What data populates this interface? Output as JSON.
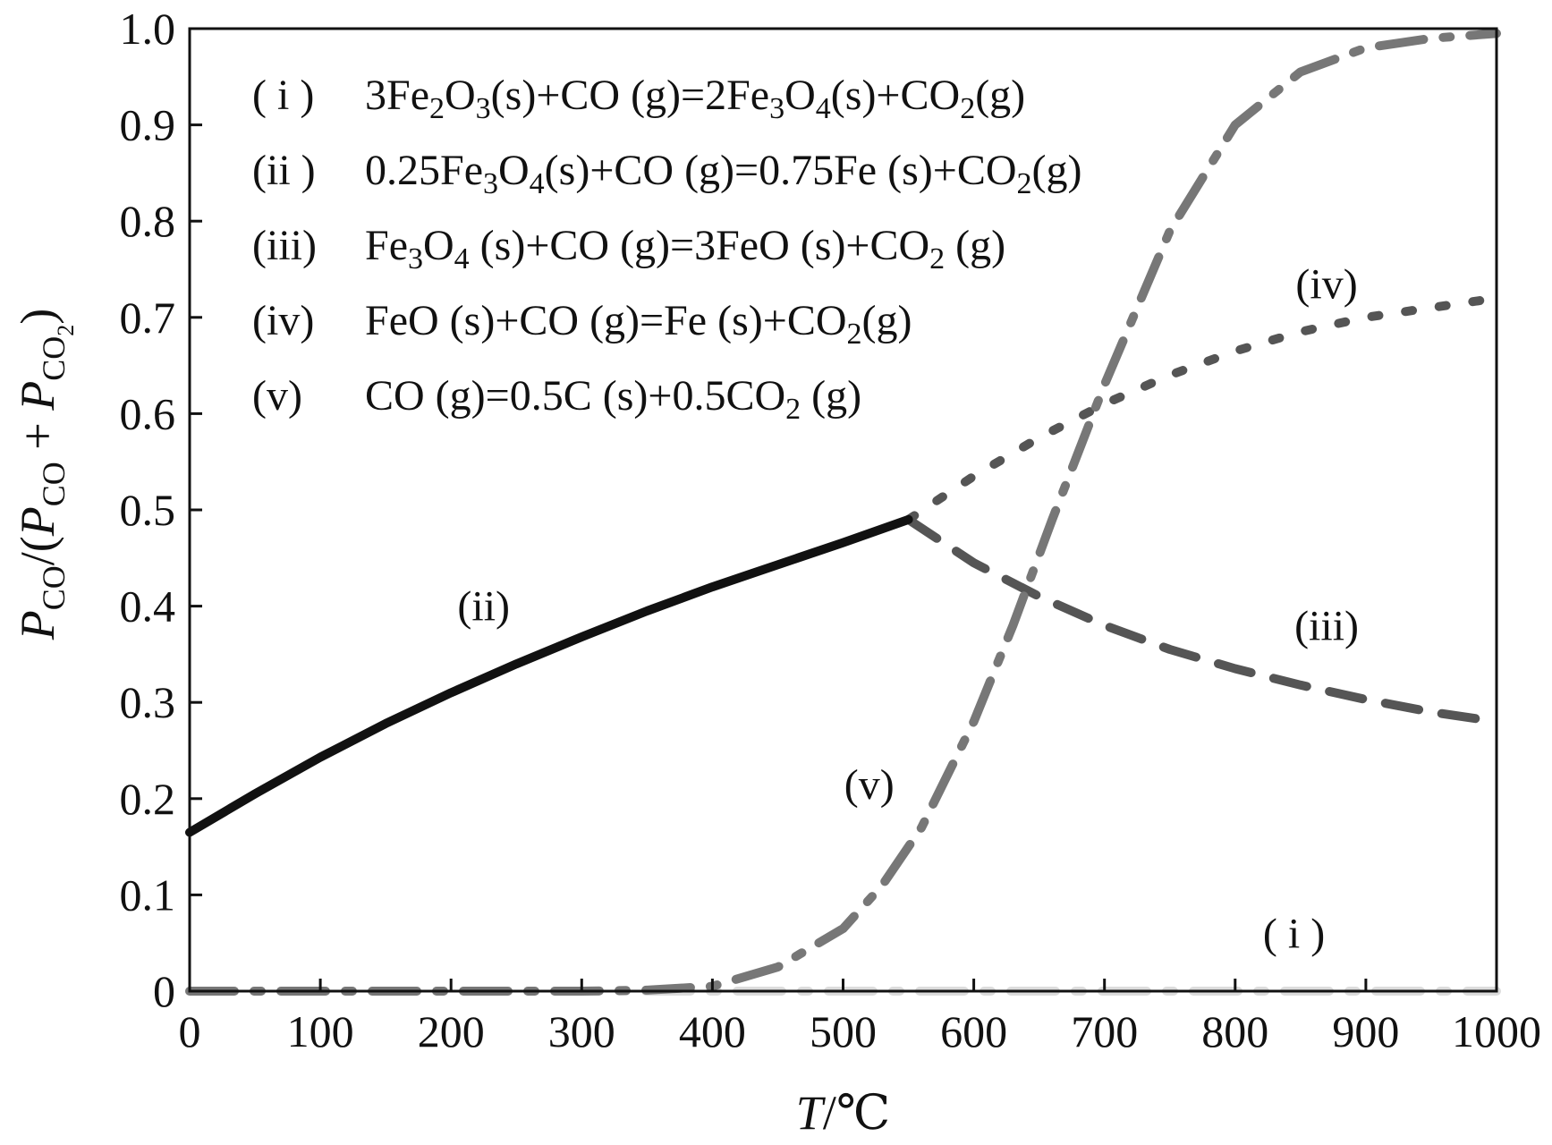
{
  "chart_data": {
    "type": "line",
    "xlabel": {
      "var": "T",
      "unit": "/℃"
    },
    "ylabel": {
      "num": "P",
      "num_sub": "CO",
      "mid": "/(",
      "p1": "P",
      "p1_sub": "CO",
      "plus": " + ",
      "p2": "P",
      "p2_sub": "CO",
      "p2_subsub": "2",
      "close": ")"
    },
    "xlim": [
      0,
      1000
    ],
    "ylim": [
      0,
      1.0
    ],
    "x_ticks": [
      "0",
      "100",
      "200",
      "300",
      "400",
      "500",
      "600",
      "700",
      "800",
      "900",
      "1000"
    ],
    "x_tick_values": [
      0,
      100,
      200,
      300,
      400,
      500,
      600,
      700,
      800,
      900,
      1000
    ],
    "y_ticks": [
      "0",
      "0.1",
      "0.2",
      "0.3",
      "0.4",
      "0.5",
      "0.6",
      "0.7",
      "0.8",
      "0.9",
      "1.0"
    ],
    "y_tick_values": [
      0,
      0.1,
      0.2,
      0.3,
      0.4,
      0.5,
      0.6,
      0.7,
      0.8,
      0.9,
      1.0
    ],
    "grid": false,
    "legend_position": "top-left",
    "legend": [
      {
        "id": "i",
        "label": "( i )",
        "parts": [
          [
            "3Fe",
            ""
          ],
          [
            "2",
            "sub"
          ],
          [
            "O",
            ""
          ],
          [
            "3",
            "sub"
          ],
          [
            "(s)+CO (g)=2Fe",
            ""
          ],
          [
            "3",
            "sub"
          ],
          [
            "O",
            ""
          ],
          [
            "4",
            "sub"
          ],
          [
            "(s)+CO",
            ""
          ],
          [
            "2",
            "sub"
          ],
          [
            "(g)",
            ""
          ]
        ]
      },
      {
        "id": "ii",
        "label": "(ii )",
        "parts": [
          [
            "0.25Fe",
            ""
          ],
          [
            "3",
            "sub"
          ],
          [
            "O",
            ""
          ],
          [
            "4",
            "sub"
          ],
          [
            "(s)+CO (g)=0.75Fe (s)+CO",
            ""
          ],
          [
            "2",
            "sub"
          ],
          [
            "(g)",
            ""
          ]
        ]
      },
      {
        "id": "iii",
        "label": "(iii)",
        "parts": [
          [
            "Fe",
            ""
          ],
          [
            "3",
            "sub"
          ],
          [
            "O",
            ""
          ],
          [
            "4",
            "sub"
          ],
          [
            " (s)+CO (g)=3FeO (s)+CO",
            ""
          ],
          [
            "2",
            "sub"
          ],
          [
            " (g)",
            ""
          ]
        ]
      },
      {
        "id": "iv",
        "label": "(iv)",
        "parts": [
          [
            "FeO (s)+CO (g)=Fe (s)+CO",
            ""
          ],
          [
            "2",
            "sub"
          ],
          [
            "(g)",
            ""
          ]
        ]
      },
      {
        "id": "v",
        "label": "(v)",
        "parts": [
          [
            "CO (g)=0.5C (s)+0.5CO",
            ""
          ],
          [
            "2",
            "sub"
          ],
          [
            " (g)",
            ""
          ]
        ]
      }
    ],
    "series": [
      {
        "id": "i",
        "color": "#dcdcdc",
        "style": "dash-dot",
        "label": "( i )",
        "x": [
          0,
          100,
          200,
          300,
          400,
          500,
          600,
          700,
          800,
          900,
          1000
        ],
        "y": [
          0,
          0,
          0,
          0,
          0,
          0,
          0,
          0,
          0,
          0,
          0
        ]
      },
      {
        "id": "ii",
        "color": "#111111",
        "style": "solid",
        "label": "(ii)",
        "x": [
          0,
          50,
          100,
          150,
          200,
          250,
          300,
          350,
          400,
          450,
          500,
          550
        ],
        "y": [
          0.165,
          0.205,
          0.243,
          0.278,
          0.31,
          0.34,
          0.368,
          0.395,
          0.42,
          0.443,
          0.466,
          0.49
        ]
      },
      {
        "id": "iii",
        "color": "#555555",
        "style": "dash",
        "label": "(iii)",
        "x": [
          550,
          600,
          650,
          700,
          750,
          800,
          850,
          900,
          950,
          1000
        ],
        "y": [
          0.49,
          0.445,
          0.41,
          0.38,
          0.355,
          0.335,
          0.318,
          0.303,
          0.29,
          0.28
        ]
      },
      {
        "id": "iv",
        "color": "#555555",
        "style": "dot",
        "label": "(iv)",
        "x": [
          550,
          600,
          650,
          700,
          750,
          800,
          850,
          900,
          950,
          1000
        ],
        "y": [
          0.49,
          0.535,
          0.575,
          0.61,
          0.64,
          0.665,
          0.685,
          0.7,
          0.71,
          0.72
        ]
      },
      {
        "id": "v",
        "color": "#777777",
        "style": "dash-dot",
        "label": "(v)",
        "x": [
          0,
          100,
          200,
          300,
          350,
          400,
          450,
          500,
          530,
          560,
          600,
          630,
          660,
          700,
          750,
          800,
          850,
          900,
          950,
          1000
        ],
        "y": [
          0,
          0,
          0,
          0,
          0.001,
          0.005,
          0.025,
          0.065,
          0.11,
          0.17,
          0.28,
          0.38,
          0.49,
          0.63,
          0.79,
          0.9,
          0.955,
          0.98,
          0.99,
          0.995
        ]
      }
    ],
    "curve_labels": [
      {
        "text": "(ii)",
        "x": 225,
        "y": 0.385
      },
      {
        "text": "(iii)",
        "x": 870,
        "y": 0.365
      },
      {
        "text": "(iv)",
        "x": 870,
        "y": 0.72
      },
      {
        "text": "(v)",
        "x": 520,
        "y": 0.2
      },
      {
        "text": "( i )",
        "x": 845,
        "y": 0.045
      }
    ]
  }
}
